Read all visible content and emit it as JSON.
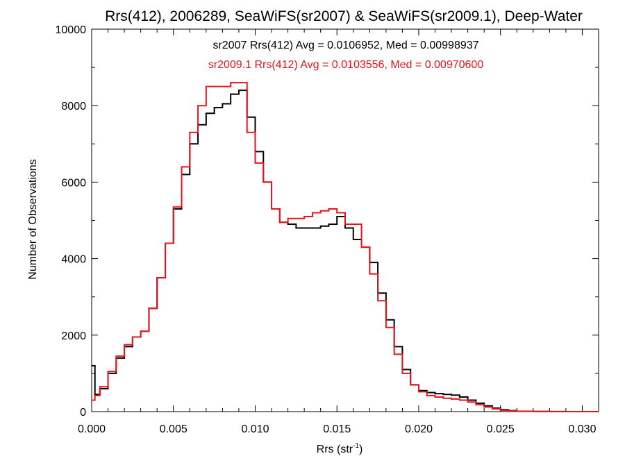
{
  "chart_data": {
    "type": "histogram",
    "title": "Rrs(412), 2006289, SeaWiFS(sr2007) & SeaWiFS(sr2009.1), Deep-Water",
    "xlabel": "Rrs (str",
    "xlabel_superscript": "-1",
    "xlabel_close": ")",
    "ylabel": "Number of Observations",
    "xlim": [
      0.0,
      0.031
    ],
    "ylim": [
      0,
      10000
    ],
    "xticks": [
      {
        "value": 0.0,
        "label": "0.000"
      },
      {
        "value": 0.005,
        "label": "0.005"
      },
      {
        "value": 0.01,
        "label": "0.010"
      },
      {
        "value": 0.015,
        "label": "0.015"
      },
      {
        "value": 0.02,
        "label": "0.020"
      },
      {
        "value": 0.025,
        "label": "0.025"
      },
      {
        "value": 0.03,
        "label": "0.030"
      }
    ],
    "yticks": [
      {
        "value": 0,
        "label": "0"
      },
      {
        "value": 2000,
        "label": "2000"
      },
      {
        "value": 4000,
        "label": "4000"
      },
      {
        "value": 6000,
        "label": "6000"
      },
      {
        "value": 8000,
        "label": "8000"
      },
      {
        "value": 10000,
        "label": "10000"
      }
    ],
    "annotations": [
      {
        "text": "sr2007 Rrs(412) Avg = 0.0106952, Med = 0.00998937",
        "color": "#000000"
      },
      {
        "text": "sr2009.1 Rrs(412) Avg = 0.0103556, Med = 0.00970600",
        "color": "#e8141c"
      }
    ],
    "series": [
      {
        "color": "#000000",
        "x": [
          0.0,
          0.0002,
          0.0005,
          0.001,
          0.0015,
          0.002,
          0.0025,
          0.003,
          0.0035,
          0.004,
          0.0045,
          0.005,
          0.0055,
          0.006,
          0.0065,
          0.007,
          0.0075,
          0.008,
          0.0085,
          0.009,
          0.0095,
          0.01,
          0.0105,
          0.011,
          0.0115,
          0.012,
          0.0125,
          0.013,
          0.0135,
          0.014,
          0.0145,
          0.015,
          0.0155,
          0.016,
          0.0165,
          0.017,
          0.0175,
          0.018,
          0.0185,
          0.019,
          0.0195,
          0.02,
          0.0205,
          0.021,
          0.0215,
          0.022,
          0.0225,
          0.023,
          0.0235,
          0.024,
          0.0245,
          0.025,
          0.0255,
          0.026,
          0.027,
          0.028,
          0.029,
          0.03,
          0.031
        ],
        "y": [
          1200,
          450,
          600,
          1000,
          1400,
          1700,
          1950,
          2100,
          2700,
          3500,
          4400,
          5300,
          6200,
          7000,
          7500,
          7800,
          7950,
          8050,
          8300,
          8400,
          7700,
          6800,
          6000,
          5300,
          4950,
          4900,
          4800,
          4800,
          4800,
          4850,
          4900,
          5100,
          4800,
          4500,
          4300,
          3900,
          3100,
          2400,
          1700,
          1100,
          700,
          550,
          500,
          470,
          450,
          430,
          380,
          300,
          220,
          150,
          90,
          50,
          25,
          10,
          4,
          2,
          1,
          0,
          0
        ]
      },
      {
        "color": "#e8141c",
        "x": [
          0.0,
          0.0002,
          0.0005,
          0.001,
          0.0015,
          0.002,
          0.0025,
          0.003,
          0.0035,
          0.004,
          0.0045,
          0.005,
          0.0055,
          0.006,
          0.0065,
          0.007,
          0.0075,
          0.008,
          0.0085,
          0.009,
          0.0095,
          0.01,
          0.0105,
          0.011,
          0.0115,
          0.012,
          0.0125,
          0.013,
          0.0135,
          0.014,
          0.0145,
          0.015,
          0.0155,
          0.016,
          0.0165,
          0.017,
          0.0175,
          0.018,
          0.0185,
          0.019,
          0.0195,
          0.02,
          0.0205,
          0.021,
          0.0215,
          0.022,
          0.0225,
          0.023,
          0.0235,
          0.024,
          0.0245,
          0.025,
          0.0255,
          0.026,
          0.027,
          0.028,
          0.029,
          0.03,
          0.031
        ],
        "y": [
          300,
          420,
          650,
          1050,
          1450,
          1750,
          1950,
          2100,
          2700,
          3500,
          4400,
          5350,
          6400,
          7300,
          8000,
          8500,
          8500,
          8500,
          8600,
          8600,
          7300,
          6500,
          6000,
          5300,
          4950,
          5050,
          5050,
          5100,
          5200,
          5250,
          5300,
          5200,
          4900,
          4900,
          4300,
          3600,
          2900,
          2200,
          1500,
          1000,
          700,
          520,
          420,
          380,
          350,
          330,
          300,
          250,
          180,
          120,
          70,
          35,
          15,
          6,
          2,
          1,
          0,
          0,
          0
        ]
      }
    ]
  }
}
